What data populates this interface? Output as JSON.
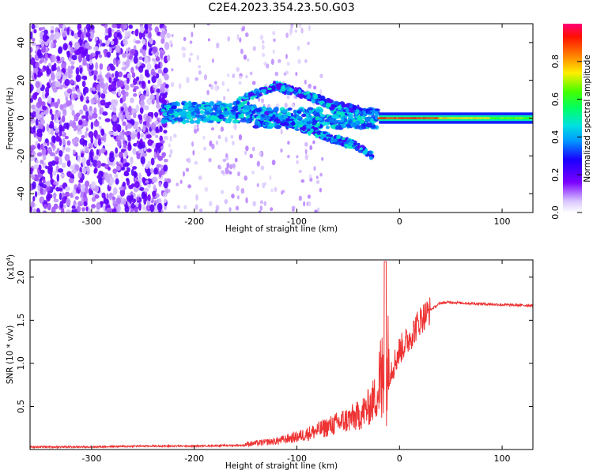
{
  "chart_data": [
    {
      "type": "heatmap",
      "title": "C2E4.2023.354.23.50.G03",
      "xlabel": "Height of straight line (km)",
      "ylabel": "Frequency (Hz)",
      "xlim": [
        -360,
        130
      ],
      "ylim": [
        -50,
        50
      ],
      "xticks": [
        -300,
        -200,
        -100,
        0,
        100
      ],
      "yticks": [
        -40,
        -20,
        0,
        20,
        40
      ],
      "colorbar": {
        "label": "Normalized spectral amplitude",
        "range": [
          0.0,
          1.0
        ],
        "ticks": [
          "0.0",
          "0.2",
          "0.4",
          "0.6",
          "0.8"
        ]
      },
      "features": [
        {
          "name": "noise-region",
          "x_range": [
            -360,
            -225
          ],
          "y_range": [
            -50,
            50
          ],
          "amplitude": 0.15
        },
        {
          "name": "horizontal-band",
          "x_range": [
            -230,
            130
          ],
          "center_freq": 0,
          "amplitude": 0.5
        },
        {
          "name": "upper-arc",
          "points": [
            [
              -160,
              8
            ],
            [
              -120,
              17
            ],
            [
              -90,
              12
            ],
            [
              -60,
              6
            ],
            [
              -40,
              4
            ]
          ]
        },
        {
          "name": "lower-arc",
          "points": [
            [
              -130,
              2
            ],
            [
              -100,
              -4
            ],
            [
              -70,
              -10
            ],
            [
              -45,
              -14
            ],
            [
              -27,
              -20
            ]
          ]
        },
        {
          "name": "strong-line",
          "x_range": [
            -20,
            130
          ],
          "center_freq": 0,
          "amplitude": 0.9
        }
      ]
    },
    {
      "type": "line",
      "xlabel": "Height of straight line (km)",
      "ylabel": "SNR (10 * v/v)",
      "y_multiplier": "(x10",
      "y_multiplier_exp": "4",
      "y_multiplier_close": ")",
      "xlim": [
        -360,
        130
      ],
      "ylim": [
        0,
        2.2
      ],
      "xticks": [
        -300,
        -200,
        -100,
        0,
        100
      ],
      "yticks": [
        "0.5",
        "1.0",
        "1.5",
        "2.0"
      ],
      "color": "#ee3333",
      "series": [
        {
          "name": "SNR",
          "x": [
            -360,
            -300,
            -250,
            -200,
            -150,
            -120,
            -100,
            -80,
            -60,
            -40,
            -30,
            -20,
            -15,
            -10,
            -5,
            0,
            10,
            20,
            30,
            40,
            50,
            60,
            80,
            100,
            130
          ],
          "y": [
            0.03,
            0.03,
            0.04,
            0.04,
            0.05,
            0.08,
            0.12,
            0.18,
            0.25,
            0.32,
            0.4,
            0.55,
            0.7,
            0.9,
            1.0,
            1.15,
            1.3,
            1.5,
            1.62,
            1.7,
            1.71,
            1.7,
            1.69,
            1.68,
            1.67
          ]
        }
      ]
    }
  ]
}
